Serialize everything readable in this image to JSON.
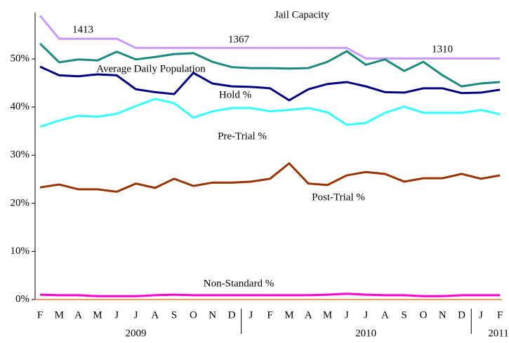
{
  "chart_data": {
    "type": "line",
    "title": "Jail Capacity",
    "categories": [
      "F",
      "M",
      "A",
      "M",
      "J",
      "J",
      "A",
      "S",
      "O",
      "N",
      "D",
      "J",
      "F",
      "M",
      "A",
      "M",
      "J",
      "J",
      "A",
      "S",
      "O",
      "N",
      "D",
      "J",
      "F"
    ],
    "years": [
      "2009",
      "2010",
      "2011"
    ],
    "annotations": [
      "1413",
      "1367",
      "1310"
    ],
    "series": [
      {
        "name": "Jail Capacity",
        "color": "#cc99ff",
        "values": [
          59,
          54.2,
          54.2,
          54.2,
          54.2,
          52.3,
          52.3,
          52.3,
          52.3,
          52.3,
          52.3,
          52.3,
          52.3,
          52.3,
          52.3,
          52.3,
          52.3,
          50.1,
          50.1,
          50.1,
          50.1,
          50.1,
          50.1,
          50.1,
          50.1
        ]
      },
      {
        "name": "Average Daily Population",
        "color": "#1a8a80",
        "values": [
          53.2,
          49.3,
          49.9,
          49.7,
          51.5,
          49.9,
          50.4,
          51.0,
          51.2,
          49.4,
          48.3,
          48.1,
          48.1,
          48.0,
          48.1,
          49.4,
          51.6,
          48.8,
          49.9,
          47.5,
          49.4,
          46.6,
          44.3,
          44.9,
          45.2
        ]
      },
      {
        "name": "Hold %",
        "color": "#000080",
        "values": [
          48.4,
          46.6,
          46.4,
          46.8,
          46.6,
          43.7,
          43.1,
          42.7,
          47.1,
          44.9,
          44.3,
          44.2,
          43.9,
          41.4,
          43.7,
          44.8,
          45.2,
          44.3,
          43.1,
          43.0,
          43.9,
          43.9,
          42.9,
          43.0,
          43.6
        ]
      },
      {
        "name": "Pre-Trial %",
        "color": "#33ffff",
        "values": [
          35.9,
          37.2,
          38.2,
          38.0,
          38.6,
          40.2,
          41.7,
          40.8,
          37.8,
          39.1,
          39.8,
          39.8,
          39.1,
          39.4,
          39.8,
          38.9,
          36.3,
          36.7,
          38.8,
          40.1,
          38.8,
          38.8,
          38.8,
          39.4,
          38.5
        ]
      },
      {
        "name": "Post-Trial %",
        "color": "#993300",
        "values": [
          23.3,
          23.9,
          22.9,
          22.9,
          22.4,
          24.1,
          23.2,
          25.1,
          23.6,
          24.3,
          24.3,
          24.5,
          25.1,
          28.3,
          24.1,
          23.8,
          25.8,
          26.5,
          26.1,
          24.5,
          25.2,
          25.2,
          26.1,
          25.1,
          25.8
        ]
      },
      {
        "name": "Non-Standard %",
        "color": "#ff00cc",
        "values": [
          1.0,
          0.9,
          0.9,
          0.7,
          0.7,
          0.7,
          0.9,
          1.0,
          0.9,
          0.9,
          0.9,
          0.9,
          0.9,
          0.9,
          0.9,
          1.0,
          1.2,
          1.0,
          0.9,
          0.9,
          0.7,
          0.7,
          0.9,
          0.9,
          0.9
        ]
      }
    ],
    "ylim": [
      0,
      59
    ],
    "yticks": [
      {
        "value": 0,
        "label": "0%"
      },
      {
        "value": 10,
        "label": "10%"
      },
      {
        "value": 20,
        "label": "20%"
      },
      {
        "value": 30,
        "label": "30%"
      },
      {
        "value": 40,
        "label": "40%"
      },
      {
        "value": 50,
        "label": "50%"
      }
    ],
    "grid": false
  }
}
